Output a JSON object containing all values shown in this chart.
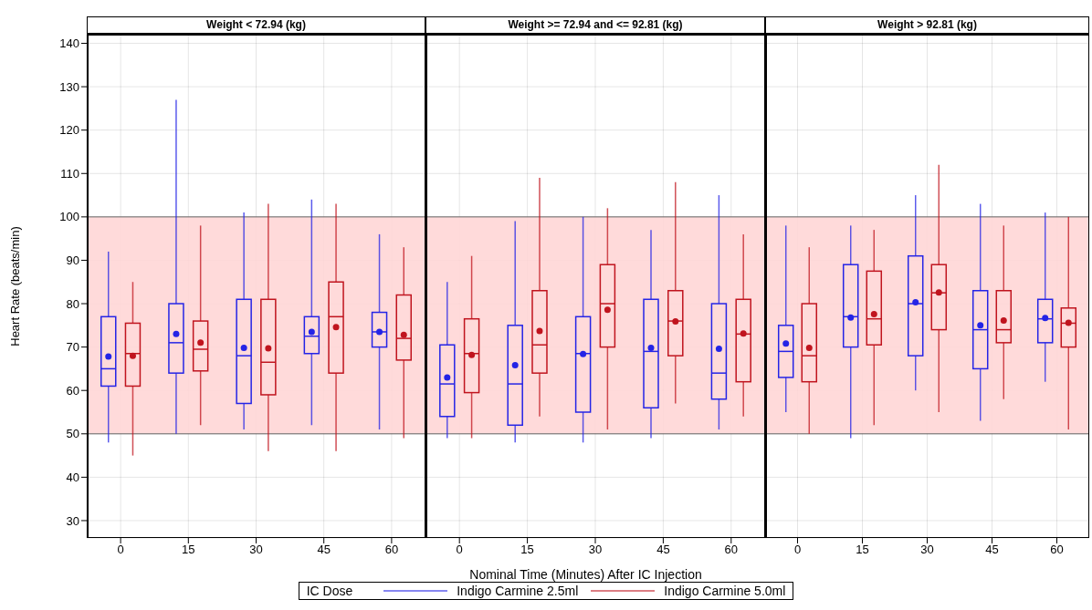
{
  "chart_data": [
    {
      "type": "box",
      "title": "Weight < 72.94 (kg)",
      "ylabel": "Heart Rate (beats/min)",
      "categories": [
        "0",
        "15",
        "30",
        "45",
        "60"
      ],
      "ylim": [
        26,
        142
      ],
      "yticks": [
        30,
        40,
        50,
        60,
        70,
        80,
        90,
        100,
        110,
        120,
        130,
        140
      ],
      "grid": true,
      "bands": [
        {
          "axis": "y",
          "from": 50,
          "to": 100,
          "color": "#ffd6d6"
        }
      ],
      "series": [
        {
          "color": "#2424e6",
          "boxes": [
            {
              "low": 48,
              "q1": 61,
              "median": 65,
              "q3": 77,
              "high": 92,
              "mean": 67.8
            },
            {
              "low": 50,
              "q1": 64,
              "median": 71,
              "q3": 80,
              "high": 127,
              "mean": 73
            },
            {
              "low": 51,
              "q1": 57,
              "median": 68,
              "q3": 81,
              "high": 101,
              "mean": 69.8
            },
            {
              "low": 52,
              "q1": 68.5,
              "median": 72.5,
              "q3": 77,
              "high": 104,
              "mean": 73.5
            },
            {
              "low": 51,
              "q1": 70,
              "median": 73.5,
              "q3": 78,
              "high": 96,
              "mean": 73.5
            }
          ]
        },
        {
          "color": "#c0141e",
          "boxes": [
            {
              "low": 45,
              "q1": 61,
              "median": 68.5,
              "q3": 75.5,
              "high": 85,
              "mean": 68
            },
            {
              "low": 52,
              "q1": 64.5,
              "median": 69.5,
              "q3": 76,
              "high": 98,
              "mean": 71
            },
            {
              "low": 46,
              "q1": 59,
              "median": 66.5,
              "q3": 81,
              "high": 103,
              "mean": 69.7
            },
            {
              "low": 46,
              "q1": 64,
              "median": 77,
              "q3": 85,
              "high": 103,
              "mean": 74.6
            },
            {
              "low": 49,
              "q1": 67,
              "median": 72,
              "q3": 82,
              "high": 93,
              "mean": 72.8
            }
          ]
        }
      ]
    },
    {
      "type": "box",
      "title": "Weight >= 72.94 and <= 92.81 (kg)",
      "xlabel": "Nominal Time (Minutes) After IC Injection",
      "legend": "bottom",
      "legend_title": "IC Dose",
      "tick_labels": "x",
      "categories": [
        "0",
        "15",
        "30",
        "45",
        "60"
      ],
      "ylim": [
        26,
        142
      ],
      "yticks": [
        30,
        40,
        50,
        60,
        70,
        80,
        90,
        100,
        110,
        120,
        130,
        140
      ],
      "grid": true,
      "bands": [
        {
          "axis": "y",
          "from": 50,
          "to": 100,
          "color": "#ffd6d6"
        }
      ],
      "series": [
        {
          "name": "Indigo Carmine 2.5ml",
          "color": "#2424e6",
          "boxes": [
            {
              "low": 49,
              "q1": 54,
              "median": 61.5,
              "q3": 70.5,
              "high": 85,
              "mean": 63
            },
            {
              "low": 48,
              "q1": 52,
              "median": 61.5,
              "q3": 75,
              "high": 99,
              "mean": 65.8
            },
            {
              "low": 48,
              "q1": 55,
              "median": 68.5,
              "q3": 77,
              "high": 100,
              "mean": 68.4
            },
            {
              "low": 49,
              "q1": 56,
              "median": 69,
              "q3": 81,
              "high": 97,
              "mean": 69.8
            },
            {
              "low": 51,
              "q1": 58,
              "median": 64,
              "q3": 80,
              "high": 105,
              "mean": 69.6
            }
          ]
        },
        {
          "name": "Indigo Carmine 5.0ml",
          "color": "#c0141e",
          "boxes": [
            {
              "low": 49,
              "q1": 59.5,
              "median": 68.5,
              "q3": 76.5,
              "high": 91,
              "mean": 68.2
            },
            {
              "low": 54,
              "q1": 64,
              "median": 70.5,
              "q3": 83,
              "high": 109,
              "mean": 73.7
            },
            {
              "low": 51,
              "q1": 70,
              "median": 80,
              "q3": 89,
              "high": 102,
              "mean": 78.6
            },
            {
              "low": 57,
              "q1": 68,
              "median": 76,
              "q3": 83,
              "high": 108,
              "mean": 75.9
            },
            {
              "low": 54,
              "q1": 62,
              "median": 73,
              "q3": 81,
              "high": 96,
              "mean": 73.1
            }
          ]
        }
      ]
    },
    {
      "type": "box",
      "title": "Weight > 92.81 (kg)",
      "tick_labels": "x",
      "categories": [
        "0",
        "15",
        "30",
        "45",
        "60"
      ],
      "ylim": [
        26,
        142
      ],
      "yticks": [
        30,
        40,
        50,
        60,
        70,
        80,
        90,
        100,
        110,
        120,
        130,
        140
      ],
      "grid": true,
      "bands": [
        {
          "axis": "y",
          "from": 50,
          "to": 100,
          "color": "#ffd6d6"
        }
      ],
      "series": [
        {
          "color": "#2424e6",
          "boxes": [
            {
              "low": 55,
              "q1": 63,
              "median": 69,
              "q3": 75,
              "high": 98,
              "mean": 70.8
            },
            {
              "low": 49,
              "q1": 70,
              "median": 77,
              "q3": 89,
              "high": 98,
              "mean": 76.8
            },
            {
              "low": 60,
              "q1": 68,
              "median": 80,
              "q3": 91,
              "high": 105,
              "mean": 80.3
            },
            {
              "low": 53,
              "q1": 65,
              "median": 74,
              "q3": 83,
              "high": 103,
              "mean": 75
            },
            {
              "low": 62,
              "q1": 71,
              "median": 76.5,
              "q3": 81,
              "high": 101,
              "mean": 76.7
            }
          ]
        },
        {
          "color": "#c0141e",
          "boxes": [
            {
              "low": 50,
              "q1": 62,
              "median": 68,
              "q3": 80,
              "high": 93,
              "mean": 69.8
            },
            {
              "low": 52,
              "q1": 70.5,
              "median": 76.5,
              "q3": 87.5,
              "high": 97,
              "mean": 77.6
            },
            {
              "low": 55,
              "q1": 74,
              "median": 82.5,
              "q3": 89,
              "high": 112,
              "mean": 82.6
            },
            {
              "low": 58,
              "q1": 71,
              "median": 74,
              "q3": 83,
              "high": 98,
              "mean": 76.1
            },
            {
              "low": 51,
              "q1": 70,
              "median": 75.5,
              "q3": 79,
              "high": 100,
              "mean": 75.6
            }
          ]
        }
      ]
    }
  ]
}
